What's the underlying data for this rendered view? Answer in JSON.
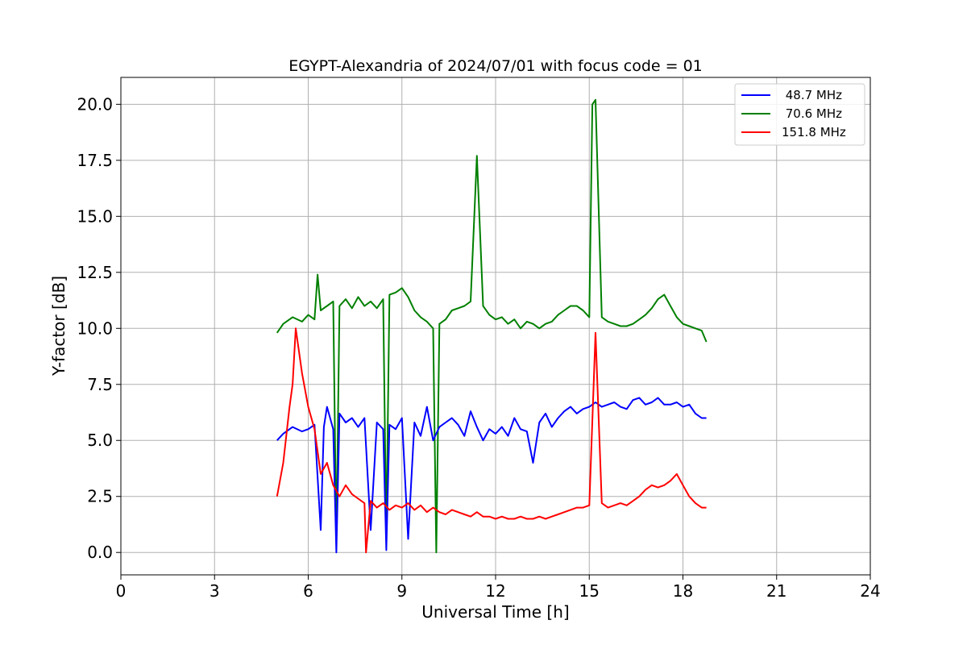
{
  "chart_data": {
    "type": "line",
    "title": "EGYPT-Alexandria of 2024/07/01 with focus code = 01",
    "xlabel": "Universal Time [h]",
    "ylabel": "Y-factor [dB]",
    "xlim": [
      0,
      24
    ],
    "ylim": [
      -1.0,
      21.2
    ],
    "xticks": [
      0,
      3,
      6,
      9,
      12,
      15,
      18,
      21,
      24
    ],
    "xtick_labels": [
      "0",
      "3",
      "6",
      "9",
      "12",
      "15",
      "18",
      "21",
      "24"
    ],
    "yticks": [
      0.0,
      2.5,
      5.0,
      7.5,
      10.0,
      12.5,
      15.0,
      17.5,
      20.0
    ],
    "ytick_labels": [
      "0.0",
      "2.5",
      "5.0",
      "7.5",
      "10.0",
      "12.5",
      "15.0",
      "17.5",
      "20.0"
    ],
    "grid": true,
    "legend_position": "top-right",
    "series": [
      {
        "name": " 48.7 MHz",
        "color": "#0000ff",
        "x": [
          5.0,
          5.2,
          5.5,
          5.8,
          6.0,
          6.2,
          6.4,
          6.5,
          6.6,
          6.8,
          6.9,
          7.0,
          7.2,
          7.4,
          7.6,
          7.8,
          8.0,
          8.2,
          8.4,
          8.5,
          8.6,
          8.8,
          9.0,
          9.2,
          9.4,
          9.6,
          9.8,
          10.0,
          10.2,
          10.4,
          10.6,
          10.8,
          11.0,
          11.2,
          11.4,
          11.6,
          11.8,
          12.0,
          12.2,
          12.4,
          12.6,
          12.8,
          13.0,
          13.2,
          13.4,
          13.6,
          13.8,
          14.0,
          14.2,
          14.4,
          14.6,
          14.8,
          15.0,
          15.2,
          15.4,
          15.6,
          15.8,
          16.0,
          16.2,
          16.4,
          16.6,
          16.8,
          17.0,
          17.2,
          17.4,
          17.6,
          17.8,
          18.0,
          18.2,
          18.4,
          18.6,
          18.75
        ],
        "values": [
          5.0,
          5.3,
          5.6,
          5.4,
          5.5,
          5.7,
          1.0,
          5.6,
          6.5,
          5.5,
          0.0,
          6.2,
          5.8,
          6.0,
          5.6,
          6.0,
          1.0,
          5.8,
          5.5,
          0.1,
          5.7,
          5.5,
          6.0,
          0.6,
          5.8,
          5.2,
          6.5,
          5.0,
          5.6,
          5.8,
          6.0,
          5.7,
          5.2,
          6.3,
          5.6,
          5.0,
          5.5,
          5.3,
          5.6,
          5.2,
          6.0,
          5.5,
          5.4,
          4.0,
          5.8,
          6.2,
          5.6,
          6.0,
          6.3,
          6.5,
          6.2,
          6.4,
          6.5,
          6.7,
          6.5,
          6.6,
          6.7,
          6.5,
          6.4,
          6.8,
          6.9,
          6.6,
          6.7,
          6.9,
          6.6,
          6.6,
          6.7,
          6.5,
          6.6,
          6.2,
          6.0,
          6.0
        ]
      },
      {
        "name": " 70.6 MHz",
        "color": "#008000",
        "x": [
          5.0,
          5.2,
          5.5,
          5.8,
          6.0,
          6.2,
          6.3,
          6.4,
          6.6,
          6.8,
          6.9,
          7.0,
          7.2,
          7.4,
          7.6,
          7.8,
          8.0,
          8.2,
          8.4,
          8.5,
          8.6,
          8.8,
          9.0,
          9.2,
          9.4,
          9.6,
          9.8,
          10.0,
          10.1,
          10.2,
          10.4,
          10.6,
          10.8,
          11.0,
          11.2,
          11.4,
          11.6,
          11.8,
          12.0,
          12.2,
          12.4,
          12.6,
          12.8,
          13.0,
          13.2,
          13.4,
          13.6,
          13.8,
          14.0,
          14.2,
          14.4,
          14.6,
          14.8,
          15.0,
          15.1,
          15.2,
          15.4,
          15.6,
          15.8,
          16.0,
          16.2,
          16.4,
          16.6,
          16.8,
          17.0,
          17.2,
          17.4,
          17.6,
          17.8,
          18.0,
          18.2,
          18.4,
          18.6,
          18.75
        ],
        "values": [
          9.8,
          10.2,
          10.5,
          10.3,
          10.6,
          10.4,
          12.4,
          10.8,
          11.0,
          11.2,
          0.5,
          11.0,
          11.3,
          10.9,
          11.4,
          11.0,
          11.2,
          10.9,
          11.3,
          0.7,
          11.5,
          11.6,
          11.8,
          11.4,
          10.8,
          10.5,
          10.3,
          10.0,
          0.0,
          10.2,
          10.4,
          10.8,
          10.9,
          11.0,
          11.2,
          17.7,
          11.0,
          10.6,
          10.4,
          10.5,
          10.2,
          10.4,
          10.0,
          10.3,
          10.2,
          10.0,
          10.2,
          10.3,
          10.6,
          10.8,
          11.0,
          11.0,
          10.8,
          10.5,
          20.0,
          20.2,
          10.5,
          10.3,
          10.2,
          10.1,
          10.1,
          10.2,
          10.4,
          10.6,
          10.9,
          11.3,
          11.5,
          11.0,
          10.5,
          10.2,
          10.1,
          10.0,
          9.9,
          9.4
        ]
      },
      {
        "name": "151.8 MHz",
        "color": "#ff0000",
        "x": [
          5.0,
          5.2,
          5.4,
          5.5,
          5.6,
          5.8,
          6.0,
          6.2,
          6.4,
          6.6,
          6.8,
          7.0,
          7.2,
          7.4,
          7.6,
          7.8,
          7.85,
          8.0,
          8.2,
          8.4,
          8.6,
          8.8,
          9.0,
          9.2,
          9.4,
          9.6,
          9.8,
          10.0,
          10.2,
          10.4,
          10.6,
          10.8,
          11.0,
          11.2,
          11.4,
          11.6,
          11.8,
          12.0,
          12.2,
          12.4,
          12.6,
          12.8,
          13.0,
          13.2,
          13.4,
          13.6,
          13.8,
          14.0,
          14.2,
          14.4,
          14.6,
          14.8,
          15.0,
          15.2,
          15.4,
          15.6,
          15.8,
          16.0,
          16.2,
          16.4,
          16.6,
          16.8,
          17.0,
          17.2,
          17.4,
          17.6,
          17.8,
          18.0,
          18.2,
          18.4,
          18.6,
          18.75
        ],
        "values": [
          2.5,
          4.0,
          6.5,
          7.5,
          10.0,
          8.0,
          6.5,
          5.5,
          3.5,
          4.0,
          3.0,
          2.5,
          3.0,
          2.6,
          2.4,
          2.2,
          0.0,
          2.3,
          2.0,
          2.2,
          1.9,
          2.1,
          2.0,
          2.2,
          1.9,
          2.1,
          1.8,
          2.0,
          1.8,
          1.7,
          1.9,
          1.8,
          1.7,
          1.6,
          1.8,
          1.6,
          1.6,
          1.5,
          1.6,
          1.5,
          1.5,
          1.6,
          1.5,
          1.5,
          1.6,
          1.5,
          1.6,
          1.7,
          1.8,
          1.9,
          2.0,
          2.0,
          2.1,
          9.8,
          2.2,
          2.0,
          2.1,
          2.2,
          2.1,
          2.3,
          2.5,
          2.8,
          3.0,
          2.9,
          3.0,
          3.2,
          3.5,
          3.0,
          2.5,
          2.2,
          2.0,
          2.0
        ]
      }
    ]
  }
}
